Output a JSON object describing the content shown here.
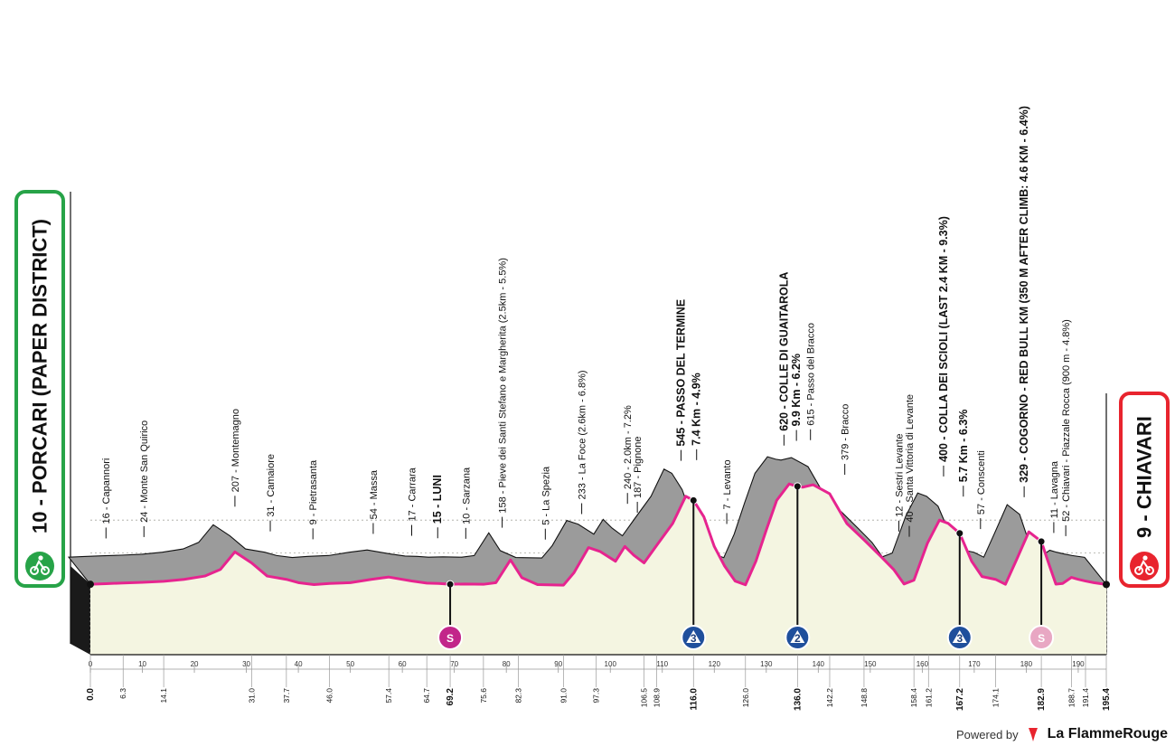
{
  "chart_data": {
    "type": "area",
    "title": "",
    "xlabel": "",
    "ylabel": "",
    "xlim": [
      0,
      195.4
    ],
    "ylim": [
      0,
      800
    ],
    "altitude_ticks": [
      "0",
      "200",
      "400"
    ],
    "start": {
      "label": "10 - PORCARI (PAPER DISTRICT)",
      "color": "#27a348"
    },
    "finish": {
      "label": "9 - CHIAVARI",
      "color": "#e8242e"
    },
    "distance_axis": {
      "ticks": [
        0,
        10,
        20,
        30,
        40,
        50,
        60,
        70,
        80,
        90,
        100,
        110,
        120,
        130,
        140,
        150,
        160,
        170,
        180,
        190
      ],
      "tick_labels": [
        "0",
        "10",
        "20",
        "30",
        "40",
        "50",
        "60",
        "70",
        "80",
        "90",
        "100",
        "110",
        "120",
        "130",
        "140",
        "150",
        "160",
        "170",
        "180",
        "190"
      ]
    },
    "waypoint_km": [
      {
        "km": "0.0",
        "bold": true
      },
      {
        "km": "6.3"
      },
      {
        "km": "14.1"
      },
      {
        "km": "31.0"
      },
      {
        "km": "37.7"
      },
      {
        "km": "46.0"
      },
      {
        "km": "57.4"
      },
      {
        "km": "64.7"
      },
      {
        "km": "69.2",
        "bold": true
      },
      {
        "km": "75.6"
      },
      {
        "km": "82.3"
      },
      {
        "km": "91.0"
      },
      {
        "km": "97.3"
      },
      {
        "km": "106.5"
      },
      {
        "km": "108.9"
      },
      {
        "km": "116.0",
        "bold": true
      },
      {
        "km": "126.0"
      },
      {
        "km": "136.0",
        "bold": true
      },
      {
        "km": "142.2"
      },
      {
        "km": "148.8"
      },
      {
        "km": "158.4"
      },
      {
        "km": "161.2"
      },
      {
        "km": "167.2",
        "bold": true
      },
      {
        "km": "174.1"
      },
      {
        "km": "182.9",
        "bold": true
      },
      {
        "km": "188.7"
      },
      {
        "km": "191.4"
      },
      {
        "km": "195.4",
        "bold": true
      }
    ],
    "locations": [
      {
        "km": 3,
        "text": "16 - Capannori"
      },
      {
        "km": 10.3,
        "text": "24 - Monte San Quirico"
      },
      {
        "km": 27.8,
        "text": "207 - Montemagno"
      },
      {
        "km": 34.6,
        "text": "31 - Camaiore"
      },
      {
        "km": 42.8,
        "text": "9 - Pietrasanta"
      },
      {
        "km": 54.4,
        "text": "54 - Massa"
      },
      {
        "km": 61.8,
        "text": "17 - Carrara"
      },
      {
        "km": 66.8,
        "text": "15 - LUNI",
        "bold": true
      },
      {
        "km": 72.2,
        "text": "10 - Sarzana"
      },
      {
        "km": 79.2,
        "text": "158 - Pieve dei Santi Stefano e Margherita (2.5km - 5.5%)"
      },
      {
        "km": 87.5,
        "text": "5 - La Spezia"
      },
      {
        "km": 94.5,
        "text": "233 - La Foce (2.6km - 6.8%)"
      },
      {
        "km": 103.3,
        "text": "240 - 2.0km - 7.2%"
      },
      {
        "km": 105.2,
        "text": "187 - Pignone"
      },
      {
        "km": 113.6,
        "text": "545 - PASSO DEL TERMINE",
        "bold": true
      },
      {
        "km": 116.6,
        "text": "7.4 Km - 4.9%",
        "bold": true
      },
      {
        "km": 122.4,
        "text": "7 - Levanto"
      },
      {
        "km": 133.4,
        "text": "620 - COLLE DI GUAITAROLA",
        "bold": true
      },
      {
        "km": 135.8,
        "text": "9.9 Km - 6.2%",
        "bold": true
      },
      {
        "km": 138.5,
        "text": "615 - Passo del Bracco"
      },
      {
        "km": 145.1,
        "text": "379 - Bracco"
      },
      {
        "km": 155.5,
        "text": "12 - Sestri Levante"
      },
      {
        "km": 157.5,
        "text": "40 - Santa Vittoria di Levante"
      },
      {
        "km": 164.1,
        "text": "400 - COLLA DEI SCIOLI (LAST 2.4 KM - 9.3%)",
        "bold": true
      },
      {
        "km": 167.9,
        "text": "5.7 Km - 6.3%",
        "bold": true
      },
      {
        "km": 171.2,
        "text": "57 - Conscenti"
      },
      {
        "km": 179.6,
        "text": "329 - COGORNO - RED BULL KM (350 M AFTER CLIMB: 4.6 KM - 6.4%)",
        "bold": true
      },
      {
        "km": 185.3,
        "text": "11 - Lavagna"
      },
      {
        "km": 187.6,
        "text": "52 - Chiavari - Piazzale Rocca (900 m - 4.8%)"
      }
    ],
    "markers": [
      {
        "km": 69.2,
        "label": "S",
        "kind": "sprint"
      },
      {
        "km": 116.0,
        "label": "3",
        "kind": "kom"
      },
      {
        "km": 136.0,
        "label": "2",
        "kind": "kom"
      },
      {
        "km": 167.2,
        "label": "3",
        "kind": "kom"
      },
      {
        "km": 182.9,
        "label": "S",
        "kind": "bonus"
      }
    ],
    "series": [
      {
        "values": [
          [
            0,
            10
          ],
          [
            3,
            14
          ],
          [
            6.3,
            18
          ],
          [
            10,
            22
          ],
          [
            14.1,
            28
          ],
          [
            18,
            40
          ],
          [
            22,
            60
          ],
          [
            25,
            100
          ],
          [
            27.8,
            207
          ],
          [
            31,
            140
          ],
          [
            34,
            60
          ],
          [
            37.7,
            40
          ],
          [
            40,
            20
          ],
          [
            43,
            8
          ],
          [
            46,
            15
          ],
          [
            50,
            20
          ],
          [
            54,
            40
          ],
          [
            57.4,
            54
          ],
          [
            61.8,
            30
          ],
          [
            64.7,
            17
          ],
          [
            67,
            15
          ],
          [
            69.2,
            10
          ],
          [
            72,
            12
          ],
          [
            75.6,
            10
          ],
          [
            78,
            20
          ],
          [
            80.8,
            158
          ],
          [
            83,
            50
          ],
          [
            86,
            8
          ],
          [
            91,
            5
          ],
          [
            93,
            80
          ],
          [
            95.8,
            233
          ],
          [
            98,
            210
          ],
          [
            101,
            150
          ],
          [
            102.8,
            240
          ],
          [
            104.5,
            187
          ],
          [
            106.5,
            140
          ],
          [
            109,
            250
          ],
          [
            112,
            380
          ],
          [
            114.5,
            545
          ],
          [
            116,
            520
          ],
          [
            118,
            420
          ],
          [
            120,
            240
          ],
          [
            122,
            120
          ],
          [
            124,
            30
          ],
          [
            126,
            7
          ],
          [
            128,
            150
          ],
          [
            130,
            340
          ],
          [
            132,
            520
          ],
          [
            134.4,
            620
          ],
          [
            136,
            605
          ],
          [
            137,
            600
          ],
          [
            139,
            615
          ],
          [
            142.2,
            560
          ],
          [
            145.5,
            379
          ],
          [
            148.8,
            280
          ],
          [
            152,
            180
          ],
          [
            154.5,
            100
          ],
          [
            156.5,
            12
          ],
          [
            158.4,
            35
          ],
          [
            161,
            260
          ],
          [
            163.3,
            400
          ],
          [
            165,
            380
          ],
          [
            167.2,
            320
          ],
          [
            169.5,
            150
          ],
          [
            171.5,
            57
          ],
          [
            174.1,
            40
          ],
          [
            176,
            10
          ],
          [
            178,
            150
          ],
          [
            180.5,
            329
          ],
          [
            182.9,
            270
          ],
          [
            184.5,
            120
          ],
          [
            185.7,
            11
          ],
          [
            187,
            15
          ],
          [
            188.7,
            52
          ],
          [
            190,
            40
          ],
          [
            191.4,
            30
          ],
          [
            193,
            20
          ],
          [
            195.4,
            9
          ]
        ]
      }
    ]
  },
  "footer": {
    "powered": "Powered by",
    "brand": "La FlammeRouge"
  }
}
